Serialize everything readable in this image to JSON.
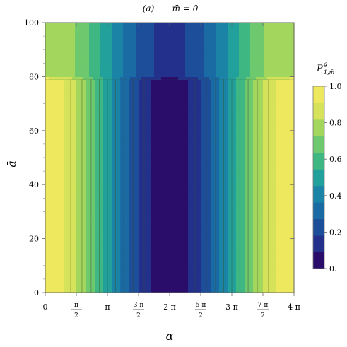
{
  "chart_data": {
    "type": "heatmap",
    "title_panel": "(a)",
    "title_condition": "m̄ = 0",
    "xlabel": "α",
    "ylabel": "ā",
    "xlim": [
      0,
      4
    ],
    "x_unit": "π",
    "ylim": [
      0,
      100
    ],
    "x_ticks": [
      {
        "value": 0,
        "label": "0"
      },
      {
        "value": 0.5,
        "num": "π",
        "den": "2"
      },
      {
        "value": 1,
        "label": "π"
      },
      {
        "value": 1.5,
        "num": "3 π",
        "den": "2"
      },
      {
        "value": 2,
        "label": "2 π"
      },
      {
        "value": 2.5,
        "num": "5 π",
        "den": "2"
      },
      {
        "value": 3,
        "label": "3 π"
      },
      {
        "value": 3.5,
        "num": "7 π",
        "den": "2"
      },
      {
        "value": 4,
        "label": "4 π"
      }
    ],
    "y_ticks": [
      0,
      20,
      40,
      60,
      80,
      100
    ],
    "colorbar": {
      "label": "P",
      "label_sup": "g",
      "label_sub": "1,m̄",
      "range": [
        0,
        1
      ],
      "ticks": [
        {
          "value": 0,
          "label": "0."
        },
        {
          "value": 0.2,
          "label": "0.2"
        },
        {
          "value": 0.4,
          "label": "0.4"
        },
        {
          "value": 0.6,
          "label": "0.6"
        },
        {
          "value": 0.8,
          "label": "0.8"
        },
        {
          "value": 1,
          "label": "1.0"
        }
      ],
      "levels": 10
    },
    "model": "P(α, ā) ≈ cos²(α/4) for ā < 79; above ā ≈ 79 the minima near α = π, 3π saturate near 0.12 and maxima near α = 0, 2π, 4π saturate near 0.85"
  },
  "colors": {
    "palette": [
      "#2a0c6b",
      "#23318c",
      "#1d4e99",
      "#1a6aa3",
      "#1b84a6",
      "#22a09b",
      "#3fb783",
      "#6ec86d",
      "#a3d65c",
      "#d5e25a",
      "#eee85e"
    ]
  }
}
